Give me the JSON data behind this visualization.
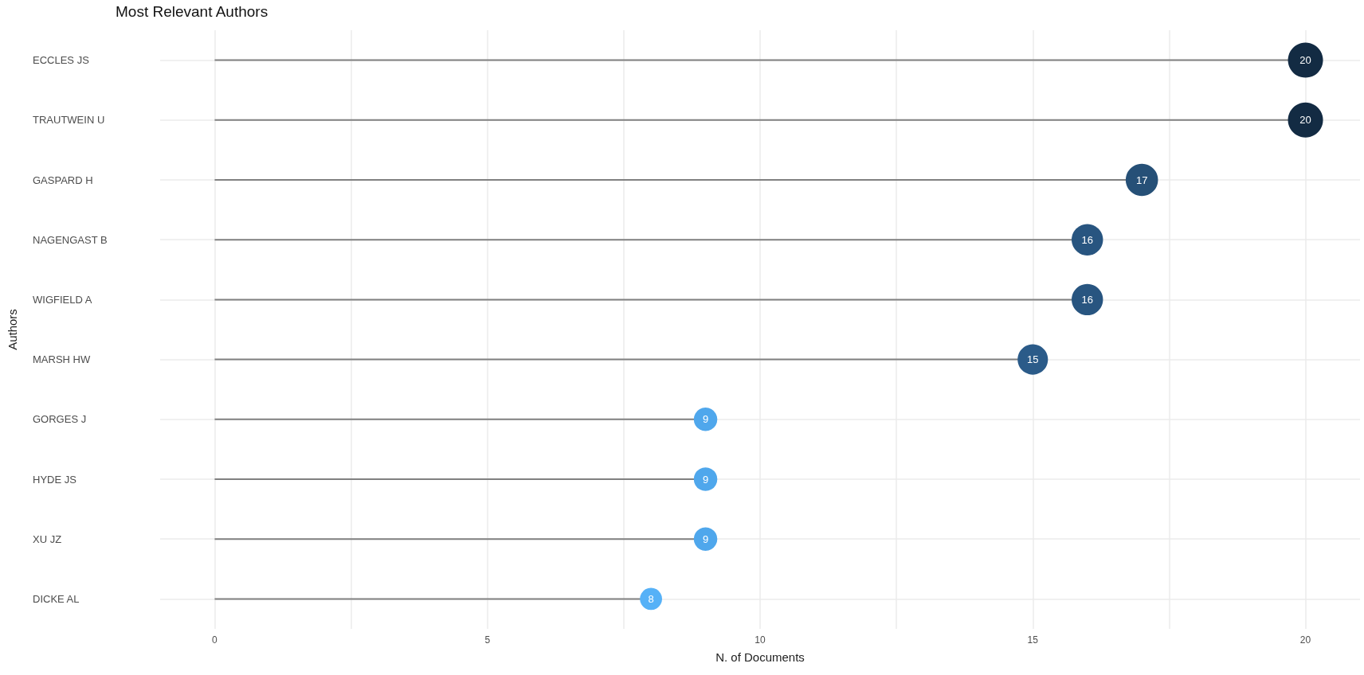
{
  "chart_data": {
    "type": "lollipop",
    "title": "Most Relevant Authors",
    "xlabel": "N. of Documents",
    "ylabel": "Authors",
    "orientation": "horizontal",
    "categories": [
      "ECCLES JS",
      "TRAUTWEIN U",
      "GASPARD H",
      "NAGENGAST B",
      "WIGFIELD A",
      "MARSH HW",
      "GORGES J",
      "HYDE JS",
      "XU JZ",
      "DICKE AL"
    ],
    "values": [
      20,
      20,
      17,
      16,
      16,
      15,
      9,
      9,
      9,
      8
    ],
    "sizes": [
      1,
      1,
      0.85,
      0.8,
      0.8,
      0.75,
      0.45,
      0.45,
      0.45,
      0.4
    ],
    "colors": [
      "#132b43",
      "#132b43",
      "#265077",
      "#285580",
      "#285580",
      "#2b5b89",
      "#4fa7ec",
      "#4fa7ec",
      "#4fa7ec",
      "#56b1f7"
    ],
    "xlim": [
      -1,
      21
    ],
    "xticks": [
      0,
      {
        "value": 2.5,
        "label": null
      },
      5,
      {
        "value": 7.5,
        "label": null
      },
      10,
      {
        "value": 12.5,
        "label": null
      },
      15,
      {
        "value": 17.5,
        "label": null
      },
      20
    ],
    "grid": true,
    "data_labels": true,
    "marker": "circle"
  }
}
